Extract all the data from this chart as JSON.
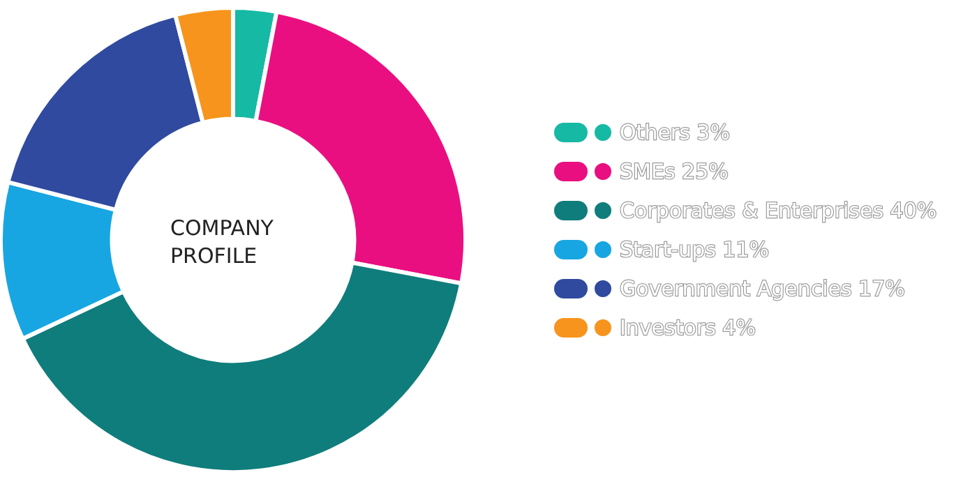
{
  "chart_data": {
    "type": "donut",
    "title": "COMPANY PROFILE",
    "categories": [
      "Others 3%",
      "SMEs 25%",
      "Corporates & Enterprises 40%",
      "Start-ups 11%",
      "Government Agencies 17%",
      "Investors 4%"
    ],
    "values": [
      3,
      25,
      40,
      11,
      17,
      4
    ],
    "colors": [
      "#16b9a4",
      "#ea0f80",
      "#0f7d7b",
      "#17a6e2",
      "#2f4a9f",
      "#f7941d"
    ],
    "legend": "right"
  }
}
